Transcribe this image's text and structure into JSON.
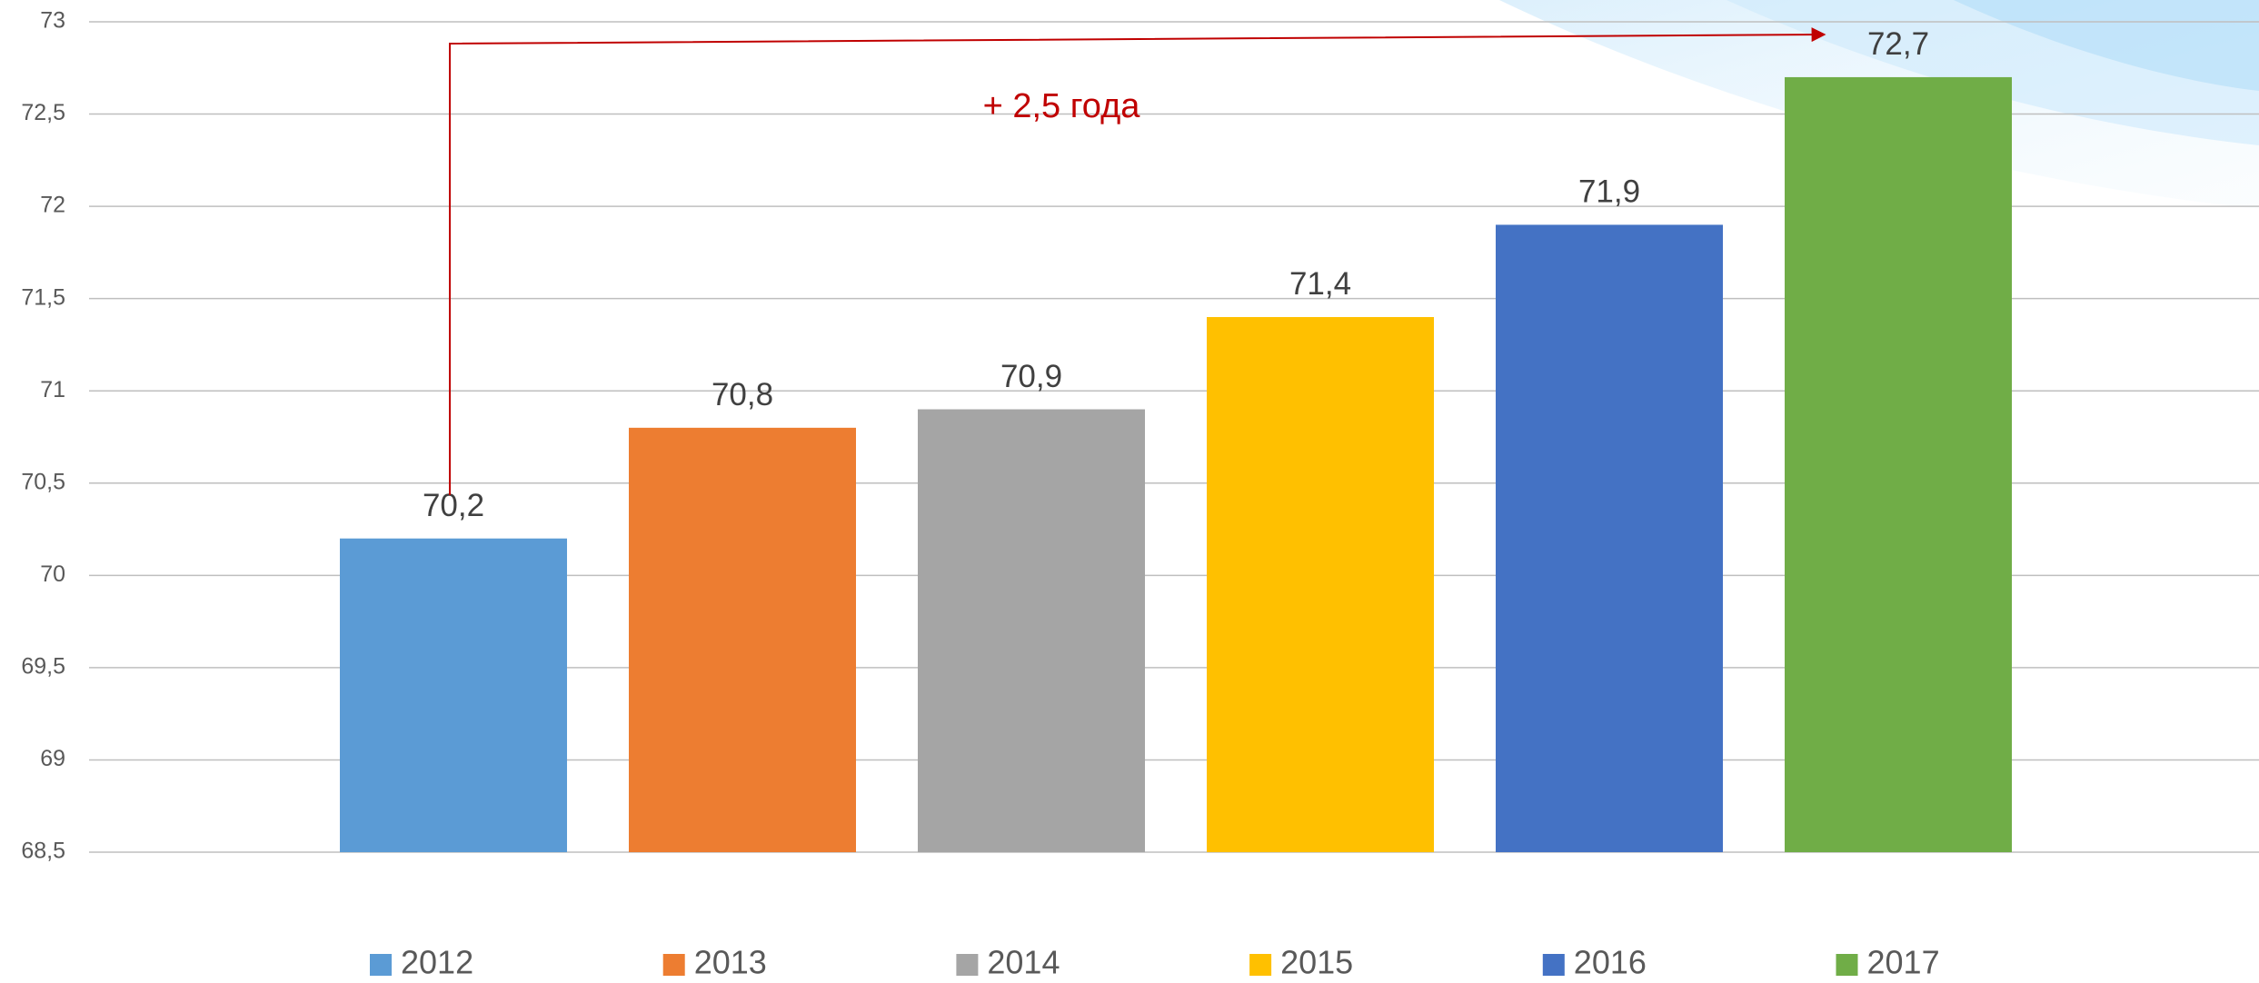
{
  "chart_data": {
    "type": "bar",
    "annotation": "+ 2,5 года",
    "series": [
      {
        "name": "2012",
        "color": "#5b9bd5",
        "values": [
          70.2
        ],
        "value_labels": [
          "70,2"
        ]
      },
      {
        "name": "2013",
        "color": "#ed7d31",
        "values": [
          70.8
        ],
        "value_labels": [
          "70,8"
        ]
      },
      {
        "name": "2014",
        "color": "#a5a5a5",
        "values": [
          70.9
        ],
        "value_labels": [
          "70,9"
        ]
      },
      {
        "name": "2015",
        "color": "#ffc000",
        "values": [
          71.4
        ],
        "value_labels": [
          "71,4"
        ]
      },
      {
        "name": "2016",
        "color": "#4472c4",
        "values": [
          71.9
        ],
        "value_labels": [
          "71,9"
        ]
      },
      {
        "name": "2017",
        "color": "#70ad47",
        "values": [
          72.7
        ],
        "value_labels": [
          "72,7"
        ]
      }
    ],
    "ylim": [
      68.5,
      73
    ],
    "yticks": [
      {
        "value": 68.5,
        "label": "68,5"
      },
      69,
      {
        "value": 69.5,
        "label": "69,5"
      },
      70,
      {
        "value": 70.5,
        "label": "70,5"
      },
      71,
      {
        "value": 71.5,
        "label": "71,5"
      },
      72,
      {
        "value": 72.5,
        "label": "72,5"
      },
      73
    ],
    "grid": true,
    "legend": "bottom"
  }
}
